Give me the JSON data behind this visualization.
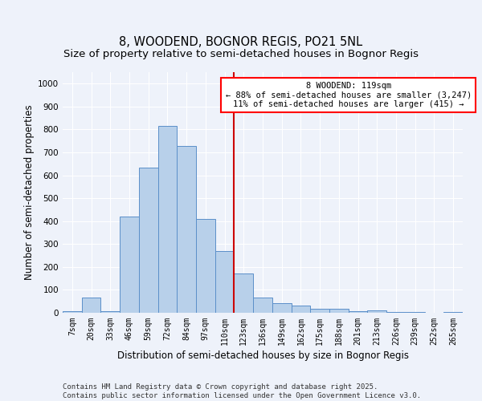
{
  "title": "8, WOODEND, BOGNOR REGIS, PO21 5NL",
  "subtitle": "Size of property relative to semi-detached houses in Bognor Regis",
  "xlabel": "Distribution of semi-detached houses by size in Bognor Regis",
  "ylabel": "Number of semi-detached properties",
  "bin_labels": [
    "7sqm",
    "20sqm",
    "33sqm",
    "46sqm",
    "59sqm",
    "72sqm",
    "84sqm",
    "97sqm",
    "110sqm",
    "123sqm",
    "136sqm",
    "149sqm",
    "162sqm",
    "175sqm",
    "188sqm",
    "201sqm",
    "213sqm",
    "226sqm",
    "239sqm",
    "252sqm",
    "265sqm"
  ],
  "bar_values": [
    7,
    65,
    7,
    420,
    635,
    815,
    727,
    410,
    270,
    170,
    65,
    42,
    30,
    18,
    18,
    8,
    10,
    3,
    3,
    0,
    5
  ],
  "bar_color": "#b8d0ea",
  "bar_edge_color": "#5b8fc9",
  "vline_x_idx": 8.5,
  "vline_color": "#cc0000",
  "annotation_text": "8 WOODEND: 119sqm\n← 88% of semi-detached houses are smaller (3,247)\n11% of semi-detached houses are larger (415) →",
  "ylim": [
    0,
    1050
  ],
  "yticks": [
    0,
    100,
    200,
    300,
    400,
    500,
    600,
    700,
    800,
    900,
    1000
  ],
  "footer": "Contains HM Land Registry data © Crown copyright and database right 2025.\nContains public sector information licensed under the Open Government Licence v3.0.",
  "bg_color": "#eef2fa",
  "grid_color": "#ffffff",
  "title_fontsize": 10.5,
  "axis_label_fontsize": 8.5,
  "tick_fontsize": 7,
  "footer_fontsize": 6.5,
  "annot_fontsize": 7.5
}
